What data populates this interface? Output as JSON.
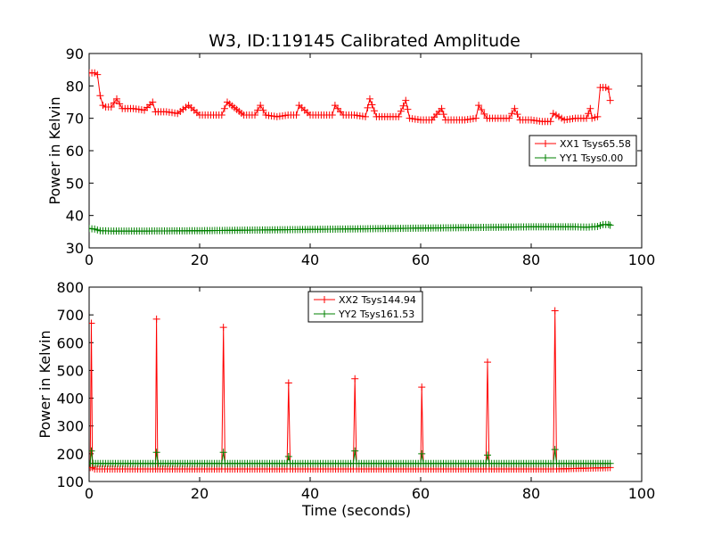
{
  "figure": {
    "title": "W3, ID:119145 Calibrated Amplitude"
  },
  "colors": {
    "red": "#ff0000",
    "green": "#008000"
  },
  "chart_data": [
    {
      "type": "line",
      "title": "W3, ID:119145 Calibrated Amplitude",
      "xlabel": "",
      "ylabel": "Power in Kelvin",
      "xlim": [
        0,
        100
      ],
      "ylim": [
        30,
        90
      ],
      "xticks": [
        0,
        20,
        40,
        60,
        80,
        100
      ],
      "yticks": [
        30,
        40,
        50,
        60,
        70,
        80,
        90
      ],
      "legend_position": "center-right",
      "series": [
        {
          "name": "XX1 Tsys65.58",
          "color": "#ff0000",
          "x": [
            0,
            0.5,
            1.0,
            1.5,
            2.0,
            2.5,
            3,
            4,
            5,
            6,
            8,
            10,
            11.5,
            12,
            14,
            16,
            18,
            20,
            22,
            24,
            25,
            28,
            30,
            31,
            32,
            34,
            36,
            37.5,
            38,
            40,
            42,
            44,
            44.5,
            46,
            48,
            50,
            50.8,
            52,
            54,
            56,
            57.3,
            58,
            60,
            62,
            63.8,
            64.5,
            66,
            68,
            70,
            70.5,
            72,
            74,
            76,
            77,
            78,
            80,
            82,
            83.5,
            84,
            86,
            88,
            90,
            90.7,
            91,
            92,
            92.5,
            93.5,
            94,
            94.3
          ],
          "y": [
            84,
            84,
            84,
            83.5,
            77,
            74,
            73.5,
            73.5,
            76,
            73,
            73,
            72.5,
            75,
            72,
            72,
            71.5,
            74,
            71,
            71,
            71,
            75,
            71,
            71,
            74,
            71,
            70.5,
            71,
            71,
            74,
            71,
            71,
            71,
            74,
            71,
            71,
            70.5,
            76,
            70.5,
            70.5,
            70.5,
            75.5,
            70,
            69.5,
            69.5,
            73,
            69.5,
            69.5,
            69.5,
            70,
            74,
            70,
            70,
            70,
            73,
            69.5,
            69.5,
            69,
            69,
            71.5,
            69.5,
            70,
            70,
            73,
            70,
            70.5,
            79.5,
            79.5,
            79,
            75.5
          ]
        },
        {
          "name": "YY1 Tsys0.00",
          "color": "#008000",
          "x": [
            0,
            1,
            2,
            4,
            10,
            20,
            30,
            40,
            50,
            60,
            70,
            80,
            88,
            90,
            92,
            93,
            94,
            94.3
          ],
          "y": [
            36,
            35.8,
            35.3,
            35.2,
            35.2,
            35.3,
            35.5,
            35.7,
            35.9,
            36.1,
            36.3,
            36.5,
            36.5,
            36.4,
            36.6,
            37.2,
            37.2,
            37
          ]
        }
      ]
    },
    {
      "type": "line",
      "title": "",
      "xlabel": "Time (seconds)",
      "ylabel": "Power in Kelvin",
      "xlim": [
        0,
        100
      ],
      "ylim": [
        100,
        800
      ],
      "xticks": [
        0,
        20,
        40,
        60,
        80,
        100
      ],
      "yticks": [
        100,
        200,
        300,
        400,
        500,
        600,
        700,
        800
      ],
      "legend_position": "upper-center",
      "series": [
        {
          "name": "XX2 Tsys144.94",
          "color": "#ff0000",
          "x": [
            0.2,
            0.4,
            0.6,
            1.0,
            12.0,
            12.2,
            12.4,
            24.0,
            24.3,
            24.6,
            35.8,
            36.1,
            36.4,
            47.8,
            48.1,
            48.4,
            60.0,
            60.2,
            60.5,
            71.8,
            72.1,
            72.4,
            84.0,
            84.3,
            84.6,
            94.3
          ],
          "y": [
            150,
            670,
            150,
            145,
            145,
            685,
            145,
            145,
            655,
            145,
            145,
            455,
            145,
            145,
            470,
            145,
            145,
            440,
            145,
            145,
            530,
            145,
            145,
            715,
            145,
            150
          ]
        },
        {
          "name": "YY2 Tsys161.53",
          "color": "#008000",
          "x": [
            0.2,
            0.4,
            0.7,
            12.0,
            12.2,
            12.5,
            24.0,
            24.3,
            24.6,
            35.8,
            36.1,
            36.4,
            47.8,
            48.1,
            48.4,
            60.0,
            60.2,
            60.5,
            71.8,
            72.1,
            72.4,
            84.0,
            84.3,
            84.6,
            94.3
          ],
          "y": [
            165,
            210,
            165,
            165,
            205,
            165,
            165,
            205,
            165,
            165,
            190,
            165,
            165,
            210,
            165,
            165,
            200,
            165,
            165,
            195,
            165,
            165,
            215,
            165,
            165
          ]
        }
      ]
    }
  ]
}
